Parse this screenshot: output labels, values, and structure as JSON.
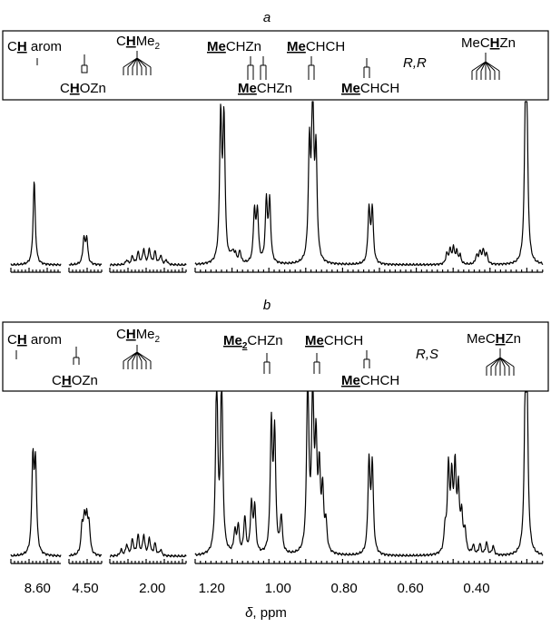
{
  "panel_a": {
    "letter": "a",
    "stereo": "R,R",
    "labels": {
      "ch_arom": [
        "C",
        "H",
        " arom"
      ],
      "chozn": [
        "C",
        "H",
        "OZn"
      ],
      "chme2": [
        "C",
        "H",
        "Me"
      ],
      "mechzn": [
        "Me",
        "CHZn"
      ],
      "mechzn2": [
        "Me",
        "CHZn"
      ],
      "mechch": [
        "Me",
        "CHCH"
      ],
      "mechch2": [
        "Me",
        "CHCH"
      ],
      "mechzn_h": [
        "MeC",
        "H",
        "Zn"
      ]
    }
  },
  "panel_b": {
    "letter": "b",
    "stereo": "R,S",
    "labels": {
      "ch_arom": [
        "C",
        "H",
        " arom"
      ],
      "chozn": [
        "C",
        "H",
        "OZn"
      ],
      "chme2": [
        "C",
        "H",
        "Me"
      ],
      "me2chzn": [
        "Me",
        "CHZn"
      ],
      "mechch": [
        "Me",
        "CHCH"
      ],
      "mechch2": [
        "Me",
        "CHCH"
      ],
      "mechzn_h": [
        "MeC",
        "H",
        "Zn"
      ]
    }
  },
  "subscript_2": "2",
  "axis": {
    "title_symbol": "δ",
    "title_unit": ", ppm",
    "tick_labels": [
      "8.60",
      "4.50",
      "2.00",
      "1.20",
      "1.00",
      "0.80",
      "0.60",
      "0.40"
    ]
  },
  "chart_data": {
    "type": "line",
    "title": "",
    "xlabel": "δ, ppm",
    "ylabel": "",
    "x_reversed": true,
    "segments_ppm": [
      [
        8.68,
        8.53
      ],
      [
        4.57,
        4.43
      ],
      [
        2.15,
        1.88
      ],
      [
        1.25,
        0.2
      ]
    ],
    "series": [
      {
        "name": "R,R",
        "peaks": [
          {
            "ppm": 8.61,
            "height": 0.5,
            "group": "CH arom"
          },
          {
            "ppm": 4.5,
            "height": 0.15,
            "group": "CHOZn"
          },
          {
            "ppm": 2.02,
            "height": 0.09,
            "group": "CHMe2"
          },
          {
            "ppm": 1.18,
            "height": 0.82,
            "group": "MeCHZn"
          },
          {
            "ppm": 1.07,
            "height": 0.3,
            "group": "MeCHZn"
          },
          {
            "ppm": 1.03,
            "height": 0.36,
            "group": "MeCHZn"
          },
          {
            "ppm": 0.9,
            "height": 0.98,
            "group": "MeCHCH"
          },
          {
            "ppm": 0.72,
            "height": 0.32,
            "group": "MeCHCH"
          },
          {
            "ppm": 0.47,
            "height": 0.07,
            "group": "MeCHZn"
          },
          {
            "ppm": 0.37,
            "height": 0.07,
            "group": "MeCHZn"
          },
          {
            "ppm": 0.25,
            "height": 0.97,
            "group": "MeCHZn"
          }
        ]
      },
      {
        "name": "R,S",
        "peaks": [
          {
            "ppm": 8.61,
            "height": 0.6,
            "group": "CH arom"
          },
          {
            "ppm": 4.5,
            "height": 0.18,
            "group": "CHOZn"
          },
          {
            "ppm": 2.04,
            "height": 0.11,
            "group": "CHMe2"
          },
          {
            "ppm": 1.18,
            "height": 1.0,
            "group": "Me2CHZn"
          },
          {
            "ppm": 1.02,
            "height": 0.7,
            "group": "Me2CHZn"
          },
          {
            "ppm": 0.9,
            "height": 1.0,
            "group": "MeCHCH"
          },
          {
            "ppm": 0.88,
            "height": 0.7,
            "group": "MeCHCH"
          },
          {
            "ppm": 0.72,
            "height": 0.5,
            "group": "MeCHCH"
          },
          {
            "ppm": 0.47,
            "height": 0.5,
            "group": "MeCHZn"
          },
          {
            "ppm": 0.37,
            "height": 0.06,
            "group": "MeCHZn"
          },
          {
            "ppm": 0.25,
            "height": 1.0,
            "group": "MeCHZn"
          }
        ]
      }
    ]
  }
}
